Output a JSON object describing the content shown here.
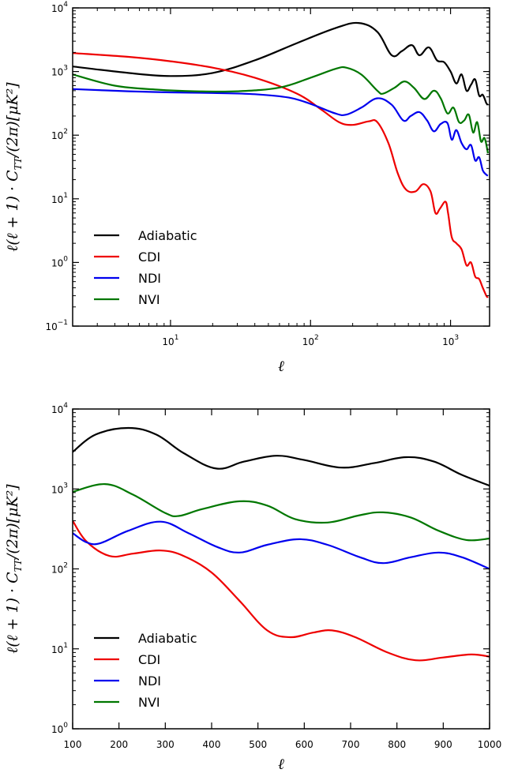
{
  "chart_data": [
    {
      "type": "line",
      "xscale": "log",
      "yscale": "log",
      "xlim": [
        2,
        1900
      ],
      "ylim": [
        0.1,
        10000
      ],
      "xlabel": "ℓ",
      "ylabel": "ℓ(ℓ + 1) · C_TT/(2π)[μK²]",
      "x_ticks": [
        {
          "value": 10,
          "label": "10",
          "exp": "1"
        },
        {
          "value": 100,
          "label": "10",
          "exp": "2"
        },
        {
          "value": 1000,
          "label": "10",
          "exp": "3"
        }
      ],
      "y_ticks": [
        {
          "value": 0.1,
          "label": "10",
          "exp": "−1"
        },
        {
          "value": 1,
          "label": "10",
          "exp": "0"
        },
        {
          "value": 10,
          "label": "10",
          "exp": "1"
        },
        {
          "value": 100,
          "label": "10",
          "exp": "2"
        },
        {
          "value": 1000,
          "label": "10",
          "exp": "3"
        },
        {
          "value": 10000,
          "label": "10",
          "exp": "4"
        }
      ],
      "legend": "lower-left",
      "series": [
        {
          "name": "Adiabatic",
          "color": "#000000",
          "points": [
            [
              2,
              1200
            ],
            [
              5,
              950
            ],
            [
              10,
              850
            ],
            [
              20,
              950
            ],
            [
              40,
              1500
            ],
            [
              80,
              2800
            ],
            [
              150,
              4800
            ],
            [
              220,
              5800
            ],
            [
              300,
              4200
            ],
            [
              380,
              1800
            ],
            [
              450,
              2100
            ],
            [
              530,
              2600
            ],
            [
              600,
              1800
            ],
            [
              700,
              2400
            ],
            [
              800,
              1500
            ],
            [
              900,
              1400
            ],
            [
              1000,
              1000
            ],
            [
              1100,
              650
            ],
            [
              1200,
              900
            ],
            [
              1300,
              500
            ],
            [
              1400,
              620
            ],
            [
              1500,
              750
            ],
            [
              1600,
              420
            ],
            [
              1700,
              430
            ],
            [
              1800,
              320
            ],
            [
              1850,
              300
            ]
          ]
        },
        {
          "name": "CDI",
          "color": "#ee0000",
          "points": [
            [
              2,
              1950
            ],
            [
              5,
              1700
            ],
            [
              10,
              1450
            ],
            [
              20,
              1150
            ],
            [
              40,
              800
            ],
            [
              80,
              450
            ],
            [
              120,
              250
            ],
            [
              160,
              160
            ],
            [
              200,
              145
            ],
            [
              260,
              165
            ],
            [
              300,
              160
            ],
            [
              360,
              75
            ],
            [
              420,
              25
            ],
            [
              480,
              14
            ],
            [
              560,
              13
            ],
            [
              640,
              17
            ],
            [
              720,
              13
            ],
            [
              780,
              6
            ],
            [
              840,
              7
            ],
            [
              920,
              9
            ],
            [
              960,
              6
            ],
            [
              1020,
              2.5
            ],
            [
              1100,
              2.0
            ],
            [
              1200,
              1.6
            ],
            [
              1300,
              0.9
            ],
            [
              1400,
              1.0
            ],
            [
              1500,
              0.6
            ],
            [
              1600,
              0.55
            ],
            [
              1700,
              0.4
            ],
            [
              1800,
              0.3
            ],
            [
              1850,
              0.28
            ]
          ]
        },
        {
          "name": "NDI",
          "color": "#0000ee",
          "points": [
            [
              2,
              530
            ],
            [
              5,
              490
            ],
            [
              10,
              470
            ],
            [
              20,
              460
            ],
            [
              40,
              440
            ],
            [
              70,
              390
            ],
            [
              100,
              310
            ],
            [
              150,
              220
            ],
            [
              180,
              210
            ],
            [
              230,
              270
            ],
            [
              300,
              380
            ],
            [
              380,
              300
            ],
            [
              460,
              170
            ],
            [
              520,
              200
            ],
            [
              600,
              230
            ],
            [
              680,
              170
            ],
            [
              760,
              115
            ],
            [
              850,
              150
            ],
            [
              950,
              155
            ],
            [
              1020,
              85
            ],
            [
              1100,
              120
            ],
            [
              1200,
              75
            ],
            [
              1300,
              60
            ],
            [
              1400,
              70
            ],
            [
              1500,
              40
            ],
            [
              1600,
              45
            ],
            [
              1700,
              28
            ],
            [
              1800,
              24
            ],
            [
              1850,
              23
            ]
          ]
        },
        {
          "name": "NVI",
          "color": "#007700",
          "points": [
            [
              2,
              900
            ],
            [
              4,
              600
            ],
            [
              8,
              520
            ],
            [
              15,
              490
            ],
            [
              30,
              490
            ],
            [
              60,
              560
            ],
            [
              100,
              800
            ],
            [
              150,
              1100
            ],
            [
              180,
              1150
            ],
            [
              230,
              900
            ],
            [
              300,
              500
            ],
            [
              330,
              450
            ],
            [
              400,
              560
            ],
            [
              470,
              700
            ],
            [
              550,
              550
            ],
            [
              650,
              370
            ],
            [
              760,
              500
            ],
            [
              850,
              380
            ],
            [
              950,
              220
            ],
            [
              1050,
              270
            ],
            [
              1150,
              160
            ],
            [
              1250,
              170
            ],
            [
              1350,
              210
            ],
            [
              1450,
              110
            ],
            [
              1550,
              160
            ],
            [
              1650,
              80
            ],
            [
              1750,
              90
            ],
            [
              1850,
              52
            ]
          ]
        }
      ]
    },
    {
      "type": "line",
      "xscale": "linear",
      "yscale": "log",
      "xlim": [
        100,
        1000
      ],
      "ylim": [
        1,
        10000
      ],
      "xlabel": "ℓ",
      "ylabel": "ℓ(ℓ + 1) · C_TT/(2π)[μK²]",
      "x_ticks": [
        {
          "value": 100,
          "label": "100"
        },
        {
          "value": 200,
          "label": "200"
        },
        {
          "value": 300,
          "label": "300"
        },
        {
          "value": 400,
          "label": "400"
        },
        {
          "value": 500,
          "label": "500"
        },
        {
          "value": 600,
          "label": "600"
        },
        {
          "value": 700,
          "label": "700"
        },
        {
          "value": 800,
          "label": "800"
        },
        {
          "value": 900,
          "label": "900"
        },
        {
          "value": 1000,
          "label": "1000"
        }
      ],
      "y_ticks": [
        {
          "value": 1,
          "label": "10",
          "exp": "0"
        },
        {
          "value": 10,
          "label": "10",
          "exp": "1"
        },
        {
          "value": 100,
          "label": "10",
          "exp": "2"
        },
        {
          "value": 1000,
          "label": "10",
          "exp": "3"
        },
        {
          "value": 10000,
          "label": "10",
          "exp": "4"
        }
      ],
      "legend": "lower-left",
      "series": [
        {
          "name": "Adiabatic",
          "color": "#000000",
          "points": [
            [
              100,
              2900
            ],
            [
              150,
              4800
            ],
            [
              220,
              5800
            ],
            [
              280,
              4800
            ],
            [
              340,
              2800
            ],
            [
              410,
              1800
            ],
            [
              470,
              2200
            ],
            [
              540,
              2600
            ],
            [
              600,
              2300
            ],
            [
              680,
              1850
            ],
            [
              750,
              2100
            ],
            [
              820,
              2500
            ],
            [
              880,
              2200
            ],
            [
              940,
              1500
            ],
            [
              1000,
              1100
            ]
          ]
        },
        {
          "name": "CDI",
          "color": "#ee0000",
          "points": [
            [
              100,
              400
            ],
            [
              130,
              220
            ],
            [
              180,
              145
            ],
            [
              230,
              155
            ],
            [
              290,
              170
            ],
            [
              340,
              145
            ],
            [
              400,
              90
            ],
            [
              460,
              40
            ],
            [
              520,
              17
            ],
            [
              570,
              14
            ],
            [
              620,
              16
            ],
            [
              660,
              17
            ],
            [
              710,
              14
            ],
            [
              780,
              9
            ],
            [
              840,
              7.2
            ],
            [
              900,
              7.8
            ],
            [
              960,
              8.5
            ],
            [
              1000,
              8
            ]
          ]
        },
        {
          "name": "NDI",
          "color": "#0000ee",
          "points": [
            [
              100,
              280
            ],
            [
              130,
              215
            ],
            [
              160,
              210
            ],
            [
              220,
              300
            ],
            [
              290,
              390
            ],
            [
              350,
              280
            ],
            [
              410,
              190
            ],
            [
              460,
              160
            ],
            [
              520,
              200
            ],
            [
              590,
              235
            ],
            [
              650,
              200
            ],
            [
              720,
              140
            ],
            [
              770,
              118
            ],
            [
              830,
              140
            ],
            [
              890,
              160
            ],
            [
              940,
              140
            ],
            [
              1000,
              100
            ]
          ]
        },
        {
          "name": "NVI",
          "color": "#007700",
          "points": [
            [
              100,
              920
            ],
            [
              170,
              1150
            ],
            [
              230,
              850
            ],
            [
              300,
              500
            ],
            [
              330,
              460
            ],
            [
              380,
              560
            ],
            [
              460,
              700
            ],
            [
              520,
              620
            ],
            [
              580,
              420
            ],
            [
              650,
              380
            ],
            [
              720,
              470
            ],
            [
              770,
              510
            ],
            [
              830,
              440
            ],
            [
              890,
              300
            ],
            [
              950,
              230
            ],
            [
              1000,
              240
            ]
          ]
        }
      ]
    }
  ]
}
